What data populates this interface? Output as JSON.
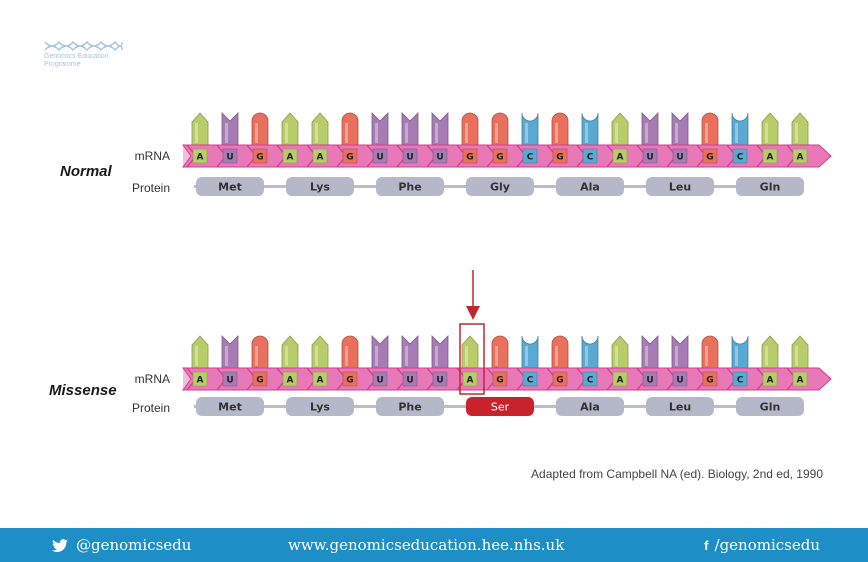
{
  "logo": {
    "line1": "Genomics Education",
    "line2": "Programme",
    "color": "#a9c6dc"
  },
  "labels": {
    "mrna": "mRNA",
    "protein": "Protein"
  },
  "colors": {
    "A": "#b8cc6a",
    "U": "#a77bb4",
    "G": "#e8705c",
    "C": "#5aa9d2",
    "backbone": "#e878b8",
    "backbone_dark": "#d63c8c",
    "protein_pill": "#b5b8c9",
    "mutant_pill": "#c8232c",
    "arrow": "#c0282f",
    "footer": "#1d8ec6"
  },
  "rows": [
    {
      "title": "Normal",
      "bases": [
        "A",
        "U",
        "G",
        "A",
        "A",
        "G",
        "U",
        "U",
        "U",
        "G",
        "G",
        "C",
        "G",
        "C",
        "A",
        "U",
        "U",
        "G",
        "C",
        "A",
        "A"
      ],
      "codons": [
        "Met",
        "Lys",
        "Phe",
        "Gly",
        "Ala",
        "Leu",
        "Gln"
      ],
      "mutated_codon": null,
      "mutated_base": null
    },
    {
      "title": "Missense",
      "bases": [
        "A",
        "U",
        "G",
        "A",
        "A",
        "G",
        "U",
        "U",
        "U",
        "A",
        "G",
        "C",
        "G",
        "C",
        "A",
        "U",
        "U",
        "G",
        "C",
        "A",
        "A"
      ],
      "codons": [
        "Met",
        "Lys",
        "Phe",
        "Ser",
        "Ala",
        "Leu",
        "Gln"
      ],
      "mutated_codon": 3,
      "mutated_base": 9
    }
  ],
  "citation": "Adapted from Campbell NA (ed).  Biology, 2nd ed, 1990",
  "footer": {
    "twitter_icon": "twitter-bird-icon",
    "twitter": "@genomicsedu",
    "website": "www.genomicseducation.hee.nhs.uk",
    "facebook_icon": "facebook-f-icon",
    "facebook": "/genomicsedu"
  }
}
